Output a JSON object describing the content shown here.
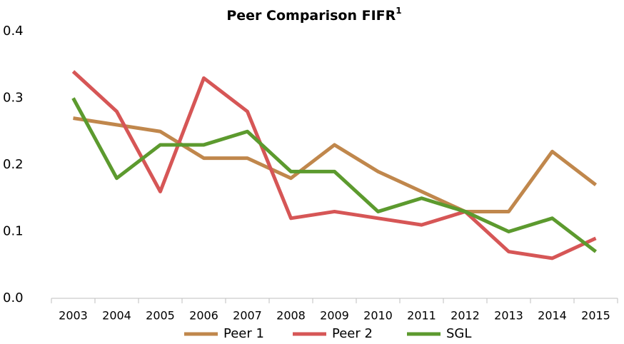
{
  "chart_data": {
    "type": "line",
    "title": "Peer Comparison FIFR",
    "title_superscript": "1",
    "categories": [
      "2003",
      "2004",
      "2005",
      "2006",
      "2007",
      "2008",
      "2009",
      "2010",
      "2011",
      "2012",
      "2013",
      "2014",
      "2015"
    ],
    "series": [
      {
        "name": "Peer 1",
        "color": "#c0874c",
        "values": [
          0.27,
          0.26,
          0.25,
          0.21,
          0.21,
          0.18,
          0.23,
          0.19,
          0.16,
          0.13,
          0.13,
          0.22,
          0.17
        ]
      },
      {
        "name": "Peer 2",
        "color": "#d65656",
        "values": [
          0.34,
          0.28,
          0.16,
          0.33,
          0.28,
          0.12,
          0.13,
          0.12,
          0.11,
          0.13,
          0.07,
          0.06,
          0.09
        ]
      },
      {
        "name": "SGL",
        "color": "#5c9a2e",
        "values": [
          0.3,
          0.18,
          0.23,
          0.23,
          0.25,
          0.19,
          0.19,
          0.13,
          0.15,
          0.13,
          0.1,
          0.12,
          0.07
        ]
      }
    ],
    "ylim": [
      0,
      0.4
    ],
    "yticks": [
      {
        "value": 0,
        "label": "0.0"
      },
      0.1,
      0.2,
      0.3,
      0.4
    ],
    "grid": false,
    "legend": "bottom"
  }
}
